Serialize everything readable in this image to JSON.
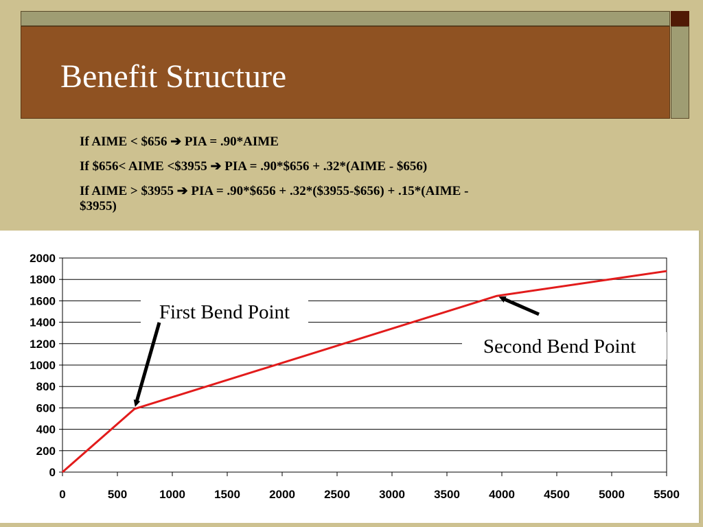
{
  "slide": {
    "title": "Benefit Structure",
    "rules": [
      "If AIME < $656 ➔ PIA = .90*AIME",
      "If $656< AIME <$3955 ➔ PIA =  .90*$656 + .32*(AIME - $656)",
      "If AIME > $3955 ➔ PIA = .90*$656 + .32*($3955-$656) + .15*(AIME -",
      "$3955)"
    ],
    "colors": {
      "background": "#cdc190",
      "title_bar": "#8f5222",
      "line": "#e21b1b"
    }
  },
  "chart_data": {
    "type": "line",
    "title": "",
    "xlabel": "",
    "ylabel": "",
    "xlim": [
      0,
      5500
    ],
    "ylim": [
      0,
      2000
    ],
    "xticks": [
      0,
      500,
      1000,
      1500,
      2000,
      2500,
      3000,
      3500,
      4000,
      4500,
      5000,
      5500
    ],
    "yticks": [
      0,
      200,
      400,
      600,
      800,
      1000,
      1200,
      1400,
      1600,
      1800,
      2000
    ],
    "grid": "horizontal",
    "series": [
      {
        "x": [
          0,
          656,
          3955,
          5500
        ],
        "y": [
          0,
          590.4,
          1646.1,
          1877.85
        ],
        "color": "#e21b1b"
      }
    ],
    "annotations": [
      {
        "text": "First Bend Point",
        "points_to": [
          656,
          590.4
        ]
      },
      {
        "text": "Second Bend Point",
        "points_to": [
          3955,
          1646.1
        ]
      }
    ]
  }
}
